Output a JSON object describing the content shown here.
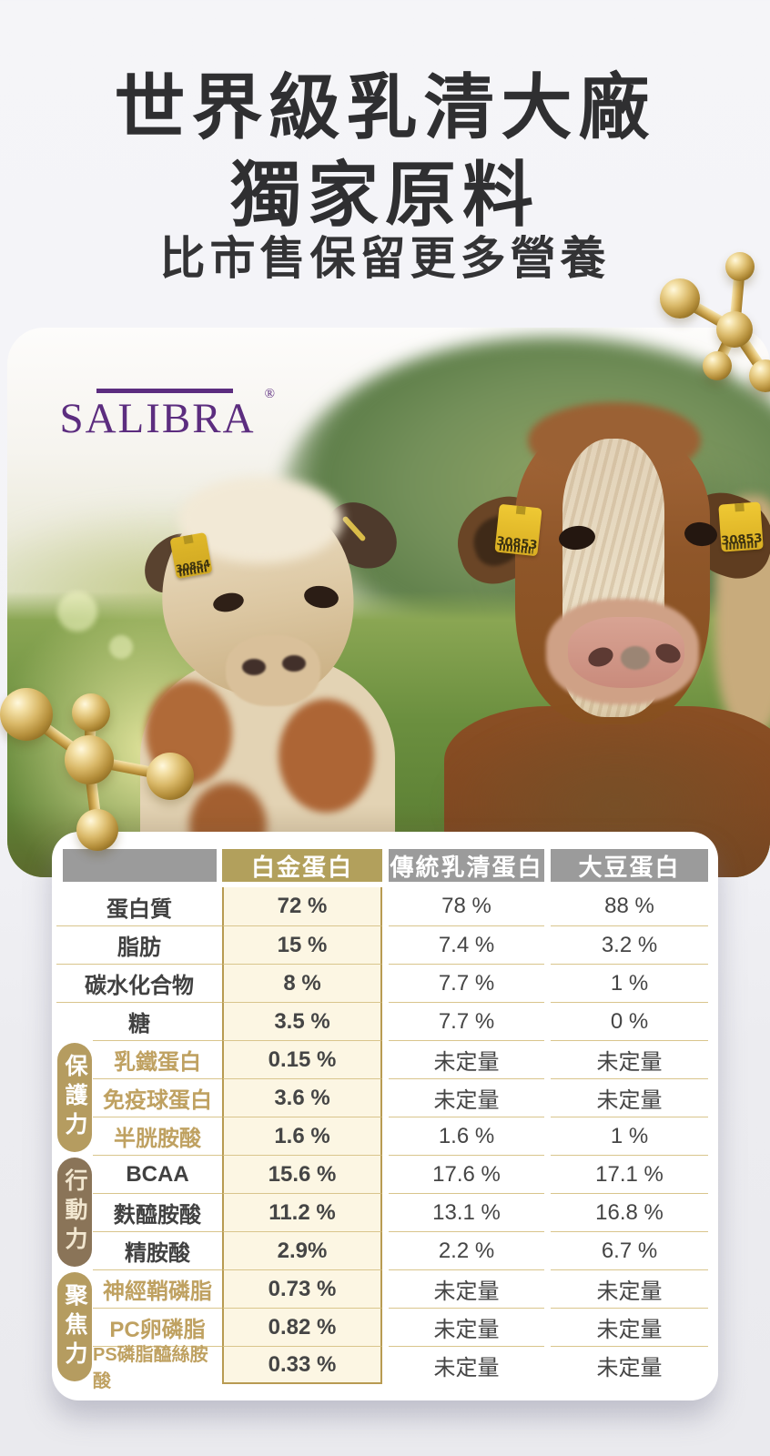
{
  "header": {
    "title_line1": "世界級乳清大廠",
    "title_line2": "獨家原料",
    "subtitle": "比市售保留更多營養"
  },
  "brand": {
    "name": "SALIBRA",
    "registered": "®"
  },
  "photo": {
    "ear_tags": [
      "30854",
      "30853",
      "30853"
    ]
  },
  "table": {
    "header_columns": [
      "白金蛋白",
      "傳統乳清蛋白",
      "大豆蛋白"
    ],
    "groups": [
      {
        "label": "保護力"
      },
      {
        "label": "行動力"
      },
      {
        "label": "聚焦力"
      }
    ],
    "rows": [
      {
        "label": "蛋白質",
        "gold_label": false,
        "values": [
          "72 %",
          "78 %",
          "88 %"
        ]
      },
      {
        "label": "脂肪",
        "gold_label": false,
        "values": [
          "15 %",
          "7.4 %",
          "3.2 %"
        ]
      },
      {
        "label": "碳水化合物",
        "gold_label": false,
        "values": [
          "8 %",
          "7.7 %",
          "1 %"
        ]
      },
      {
        "label": "糖",
        "gold_label": false,
        "values": [
          "3.5 %",
          "7.7 %",
          "0 %"
        ]
      },
      {
        "label": "乳鐵蛋白",
        "gold_label": true,
        "values": [
          "0.15 %",
          "未定量",
          "未定量"
        ]
      },
      {
        "label": "免疫球蛋白",
        "gold_label": true,
        "values": [
          "3.6 %",
          "未定量",
          "未定量"
        ]
      },
      {
        "label": "半胱胺酸",
        "gold_label": true,
        "values": [
          "1.6 %",
          "1.6 %",
          "1 %"
        ]
      },
      {
        "label": "BCAA",
        "gold_label": false,
        "values": [
          "15.6 %",
          "17.6 %",
          "17.1 %"
        ]
      },
      {
        "label": "麩醯胺酸",
        "gold_label": false,
        "values": [
          "11.2 %",
          "13.1 %",
          "16.8 %"
        ]
      },
      {
        "label": "精胺酸",
        "gold_label": false,
        "values": [
          "2.9%",
          "2.2 %",
          "6.7 %"
        ]
      },
      {
        "label": "神經鞘磷脂",
        "gold_label": true,
        "values": [
          "0.73 %",
          "未定量",
          "未定量"
        ]
      },
      {
        "label": "PC卵磷脂",
        "gold_label": true,
        "values": [
          "0.82 %",
          "未定量",
          "未定量"
        ]
      },
      {
        "label": "PS磷脂醯絲胺酸",
        "gold_label": true,
        "values": [
          "0.33 %",
          "未定量",
          "未定量"
        ]
      }
    ]
  },
  "colors": {
    "brand_purple": "#5c2d7f",
    "accent_gold": "#b2a05c",
    "header_gray": "#9b9b9b",
    "cream_highlight": "#fcf6e3",
    "gold_text": "#bfa161",
    "pill_gold": "#b59c60",
    "pill_brown": "#8a7458",
    "tag_yellow": "#e8c231"
  }
}
